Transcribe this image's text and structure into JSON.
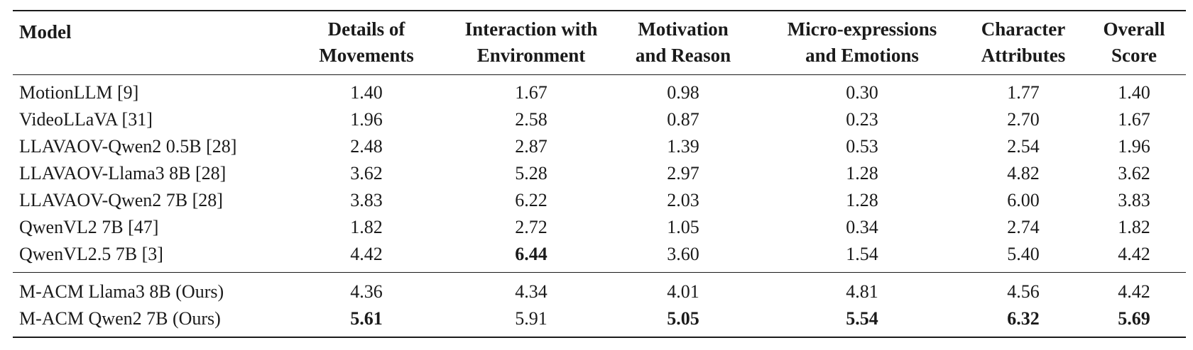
{
  "table": {
    "headers": [
      [
        "Model"
      ],
      [
        "Details of",
        "Movements"
      ],
      [
        "Interaction with",
        "Environment"
      ],
      [
        "Motivation",
        "and Reason"
      ],
      [
        "Micro-expressions",
        "and Emotions"
      ],
      [
        "Character",
        "Attributes"
      ],
      [
        "Overall",
        "Score"
      ]
    ],
    "group1": [
      {
        "model": "MotionLLM [9]",
        "values": [
          "1.40",
          "1.67",
          "0.98",
          "0.30",
          "1.77",
          "1.40"
        ]
      },
      {
        "model": "VideoLLaVA [31]",
        "values": [
          "1.96",
          "2.58",
          "0.87",
          "0.23",
          "2.70",
          "1.67"
        ]
      },
      {
        "model": "LLAVAOV-Qwen2 0.5B [28]",
        "values": [
          "2.48",
          "2.87",
          "1.39",
          "0.53",
          "2.54",
          "1.96"
        ]
      },
      {
        "model": "LLAVAOV-Llama3 8B [28]",
        "values": [
          "3.62",
          "5.28",
          "2.97",
          "1.28",
          "4.82",
          "3.62"
        ]
      },
      {
        "model": "LLAVAOV-Qwen2 7B [28]",
        "values": [
          "3.83",
          "6.22",
          "2.03",
          "1.28",
          "6.00",
          "3.83"
        ]
      },
      {
        "model": "QwenVL2 7B [47]",
        "values": [
          "1.82",
          "2.72",
          "1.05",
          "0.34",
          "2.74",
          "1.82"
        ]
      },
      {
        "model": "QwenVL2.5 7B [3]",
        "values": [
          "4.42",
          "6.44",
          "3.60",
          "1.54",
          "5.40",
          "4.42"
        ]
      }
    ],
    "group2": [
      {
        "model": "M-ACM Llama3 8B (Ours)",
        "values": [
          "4.36",
          "4.34",
          "4.01",
          "4.81",
          "4.56",
          "4.42"
        ]
      },
      {
        "model": "M-ACM Qwen2 7B (Ours)",
        "values": [
          "5.61",
          "5.91",
          "5.05",
          "5.54",
          "6.32",
          "5.69"
        ]
      }
    ]
  }
}
